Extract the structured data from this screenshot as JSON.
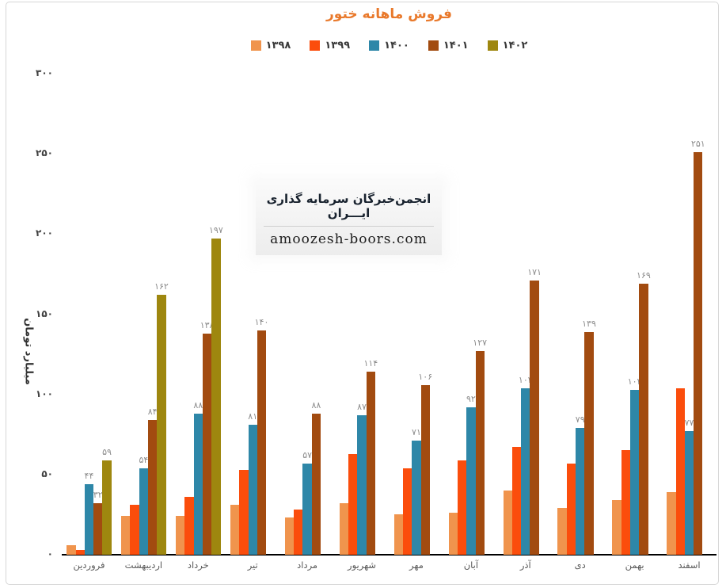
{
  "page": {
    "watermark": {
      "line1": "انجمن‌خبرگان سرمایه گذاری ایـــران",
      "line2": "amoozesh-boors.com"
    }
  },
  "chart_data": {
    "type": "bar",
    "title": "فروش ماهانه ختور",
    "ylabel": "میلیارد تومان",
    "ylim": [
      0,
      300
    ],
    "yticks": [
      0,
      50,
      100,
      150,
      200,
      250,
      300
    ],
    "grid": false,
    "legend_position": "top-center",
    "digit_map": "۰۱۲۳۴۵۶۷۸۹",
    "label_color": "#8c8c8c",
    "title_color": "#e9792b",
    "categories": [
      "فروردین",
      "اردیبهشت",
      "خرداد",
      "تیر",
      "مرداد",
      "شهریور",
      "مهر",
      "آبان",
      "آذر",
      "دی",
      "بهمن",
      "اسفند"
    ],
    "series": [
      {
        "name": "۱۳۹۸",
        "year": "1398",
        "color": "#F0944D",
        "show_labels": false,
        "values": [
          6,
          24,
          24,
          31,
          23,
          32,
          25,
          26,
          40,
          29,
          34,
          39
        ]
      },
      {
        "name": "۱۳۹۹",
        "year": "1399",
        "color": "#FB4D0C",
        "show_labels": false,
        "values": [
          3,
          31,
          36,
          53,
          28,
          63,
          54,
          59,
          67,
          57,
          65,
          104
        ]
      },
      {
        "name": "۱۴۰۰",
        "year": "1400",
        "color": "#2E87A8",
        "show_labels": true,
        "values": [
          44,
          54,
          88,
          81,
          57,
          87,
          71,
          92,
          104,
          79,
          103,
          77
        ]
      },
      {
        "name": "۱۴۰۱",
        "year": "1401",
        "color": "#A24B10",
        "show_labels": true,
        "values": [
          32,
          84,
          138,
          140,
          88,
          114,
          106,
          127,
          171,
          139,
          169,
          251
        ]
      },
      {
        "name": "۱۴۰۲",
        "year": "1402",
        "color": "#9E870F",
        "show_labels": true,
        "values": [
          59,
          162,
          197,
          null,
          null,
          null,
          null,
          null,
          null,
          null,
          null,
          null
        ]
      }
    ]
  }
}
